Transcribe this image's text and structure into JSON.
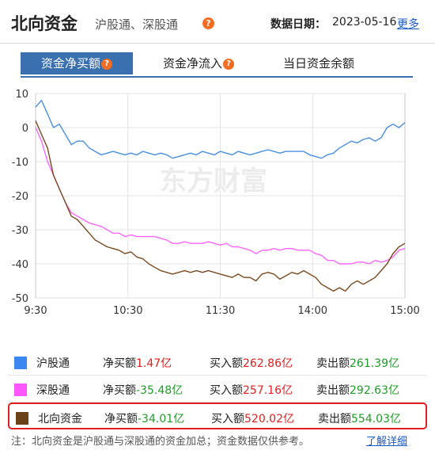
{
  "header": {
    "title": "北向资金",
    "subtitle": "沪股通、深股通",
    "date_label": "数据日期：",
    "date": "2023-05-16",
    "more": "更多"
  },
  "tabs": [
    {
      "label": "资金净买额",
      "active": true
    },
    {
      "label": "资金净流入",
      "active": false
    },
    {
      "label": "当日资金余额",
      "active": false
    }
  ],
  "chart_data": {
    "type": "line",
    "watermark": "东方财富",
    "ylim": [
      -50,
      10
    ],
    "y_ticks": [
      10,
      0,
      -10,
      -20,
      -30,
      -40,
      -50
    ],
    "x_ticks": [
      "9:30",
      "10:30",
      "11:30",
      "14:00",
      "15:00"
    ],
    "grid": true,
    "series": [
      {
        "name": "沪股通",
        "color": "#4a8fe0",
        "values": [
          6,
          8,
          4,
          0,
          1,
          -2,
          -5,
          -4,
          -4,
          -6,
          -7,
          -8,
          -7.5,
          -7,
          -7.5,
          -8,
          -7.5,
          -8,
          -7,
          -7.5,
          -8,
          -7.5,
          -8,
          -9,
          -8.5,
          -8,
          -7.5,
          -8,
          -7,
          -7.5,
          -8,
          -7,
          -7.5,
          -8,
          -7,
          -7.5,
          -8,
          -7.5,
          -7,
          -6.5,
          -7,
          -7.5,
          -7,
          -7,
          -7,
          -7,
          -8,
          -8.5,
          -9,
          -8,
          -7.5,
          -6,
          -5,
          -4,
          -4.5,
          -3.5,
          -3,
          -4,
          -3,
          0,
          1,
          0,
          1.47
        ]
      },
      {
        "name": "深股通",
        "color": "#ff66ff",
        "values": [
          0,
          -4,
          -10,
          -14,
          -18,
          -22,
          -25,
          -26,
          -27,
          -28,
          -28.5,
          -29,
          -30,
          -31,
          -31,
          -32,
          -31.5,
          -32,
          -32,
          -32,
          -32,
          -32.5,
          -33,
          -34,
          -34,
          -33.5,
          -34,
          -34,
          -34,
          -33.5,
          -34,
          -34.5,
          -34,
          -35,
          -35,
          -35.5,
          -36,
          -37,
          -36,
          -36,
          -35.5,
          -36,
          -35.5,
          -35.5,
          -36,
          -36,
          -36,
          -37,
          -37.5,
          -39,
          -39,
          -40,
          -40,
          -40,
          -39.5,
          -39.5,
          -40,
          -39,
          -39.5,
          -39,
          -38,
          -36,
          -35.48
        ]
      },
      {
        "name": "北向资金",
        "color": "#7a4a1f",
        "values": [
          2,
          -2,
          -6,
          -14,
          -18,
          -22,
          -26,
          -27,
          -29,
          -31,
          -33,
          -34,
          -35,
          -35.5,
          -36,
          -37,
          -36.5,
          -38,
          -38.5,
          -40,
          -41,
          -42,
          -42.5,
          -43,
          -42.5,
          -42,
          -42.5,
          -42,
          -42.5,
          -42,
          -42.5,
          -43,
          -43.5,
          -44,
          -43,
          -44,
          -44,
          -45,
          -43,
          -42.5,
          -43,
          -44.5,
          -43.5,
          -42.5,
          -43,
          -42,
          -43,
          -44,
          -46,
          -47,
          -48,
          -47,
          -48,
          -46,
          -45,
          -46,
          -45,
          -44,
          -42,
          -40,
          -37,
          -35,
          -34.01
        ]
      }
    ]
  },
  "legend": [
    {
      "name": "沪股通",
      "color": "#3a88f0",
      "net_label": "净买额",
      "net": "1.47亿",
      "net_color": "#e02020",
      "buy_label": "买入额",
      "buy": "262.86亿",
      "sell_label": "卖出额",
      "sell": "261.39亿"
    },
    {
      "name": "深股通",
      "color": "#ff55ff",
      "net_label": "净买额",
      "net": "-35.48亿",
      "net_color": "#1f9c28",
      "buy_label": "买入额",
      "buy": "257.16亿",
      "sell_label": "卖出额",
      "sell": "292.63亿"
    },
    {
      "name": "北向资金",
      "color": "#6b4217",
      "net_label": "净买额",
      "net": "-34.01亿",
      "net_color": "#1f9c28",
      "buy_label": "买入额",
      "buy": "520.02亿",
      "sell_label": "卖出额",
      "sell": "554.03亿"
    }
  ],
  "note": {
    "text": "注：北向资金是沪股通与深股通的资金加总；资金数据仅供参考。",
    "link": "了解详细"
  }
}
